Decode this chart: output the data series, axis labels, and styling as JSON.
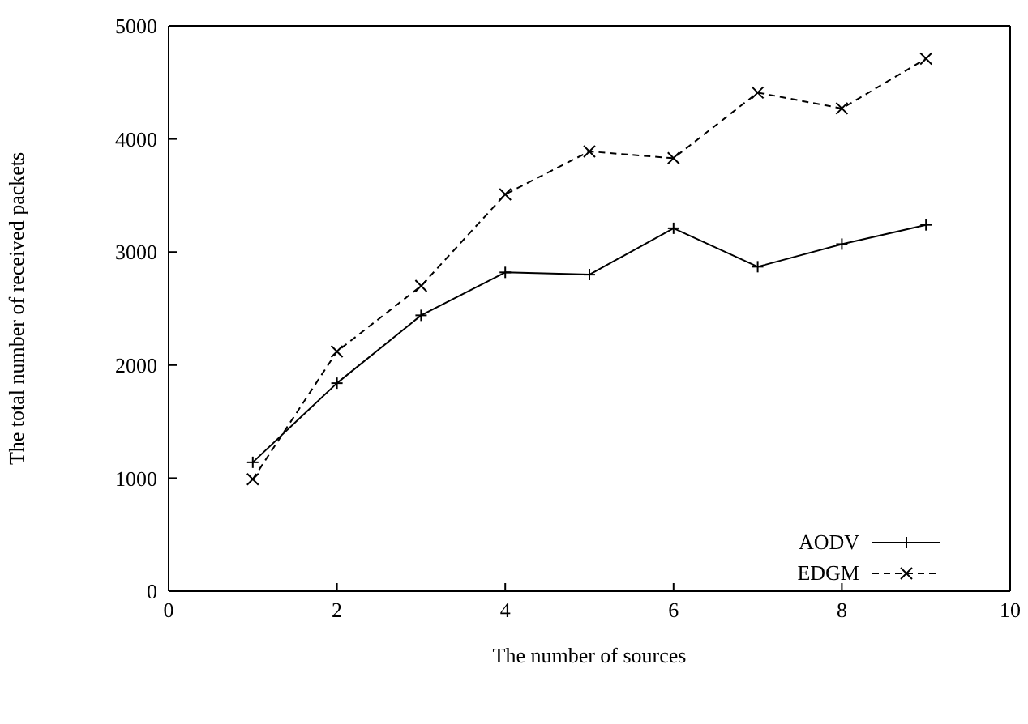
{
  "chart_data": {
    "type": "line",
    "xlabel": "The number of sources",
    "ylabel": "The total number of received packets",
    "x": [
      1,
      2,
      3,
      4,
      5,
      6,
      7,
      8,
      9
    ],
    "series": [
      {
        "name": "AODV",
        "color": "#000000",
        "line_style": "solid",
        "marker": "cross",
        "values": [
          1140,
          1840,
          2440,
          2820,
          2800,
          3210,
          2870,
          3070,
          3240
        ]
      },
      {
        "name": "EDGM",
        "color": "#000000",
        "line_style": "dashed",
        "marker": "cross",
        "values": [
          990,
          2120,
          2700,
          3510,
          3890,
          3830,
          4410,
          4270,
          4710
        ]
      }
    ],
    "xlim": [
      0,
      10
    ],
    "xticks": [
      0,
      2,
      4,
      6,
      8,
      10
    ],
    "ylim": [
      0,
      5000
    ],
    "yticks": [
      0,
      1000,
      2000,
      3000,
      4000,
      5000
    ],
    "legend": "bottom right"
  }
}
